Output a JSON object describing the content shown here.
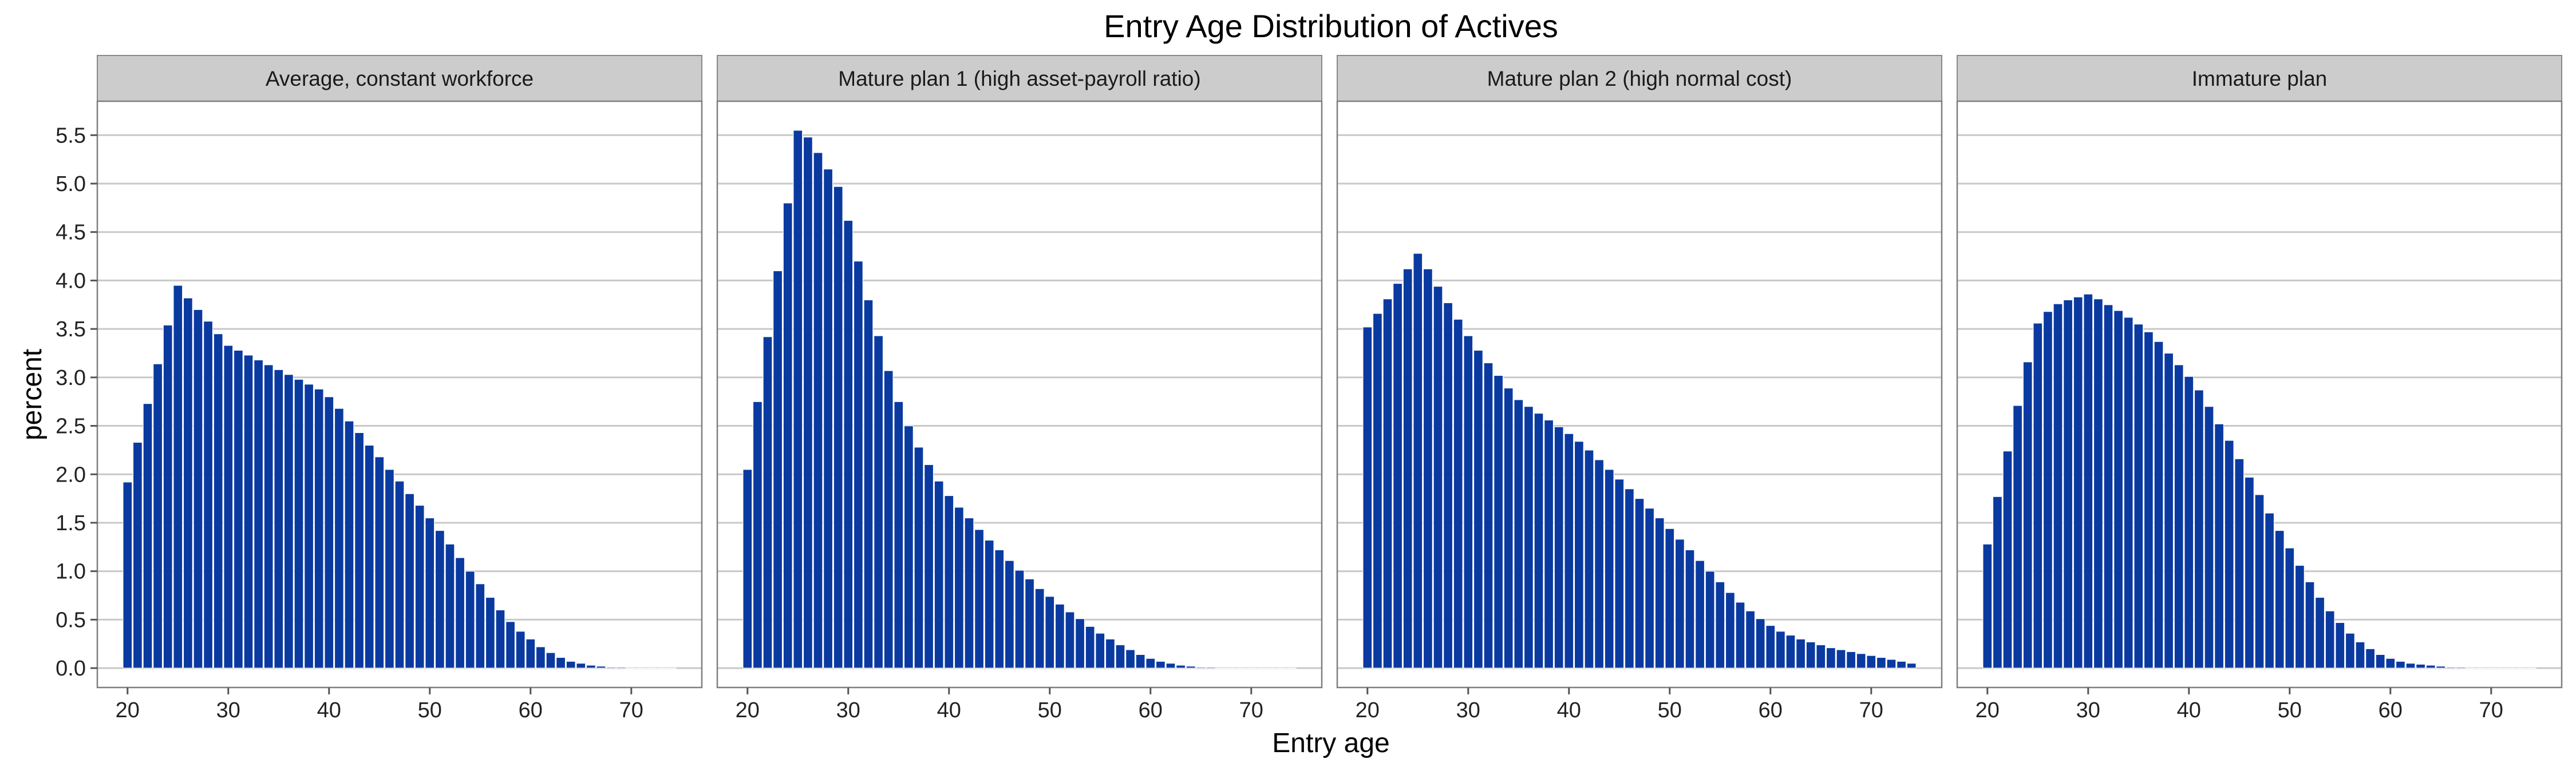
{
  "chart_data": {
    "type": "bar",
    "title": "Entry Age Distribution of Actives",
    "xlabel": "Entry age",
    "ylabel": "percent",
    "ylim": [
      -0.2,
      5.85
    ],
    "xlim": [
      17,
      77
    ],
    "x": [
      20,
      21,
      22,
      23,
      24,
      25,
      26,
      27,
      28,
      29,
      30,
      31,
      32,
      33,
      34,
      35,
      36,
      37,
      38,
      39,
      40,
      41,
      42,
      43,
      44,
      45,
      46,
      47,
      48,
      49,
      50,
      51,
      52,
      53,
      54,
      55,
      56,
      57,
      58,
      59,
      60,
      61,
      62,
      63,
      64,
      65,
      66,
      67,
      68,
      69,
      70,
      71,
      72,
      73,
      74
    ],
    "y_ticks": [
      "0.0",
      "0.5",
      "1.0",
      "1.5",
      "2.0",
      "2.5",
      "3.0",
      "3.5",
      "4.0",
      "4.5",
      "5.0",
      "5.5"
    ],
    "x_ticks": [
      "20",
      "30",
      "40",
      "50",
      "60",
      "70"
    ],
    "grid": true,
    "legend": "none",
    "bar_color": "#0a3aa0",
    "bar_border": "#ffffff",
    "panel_strip_color": "#cccccc",
    "panels": [
      {
        "name": "Average, constant workforce",
        "values": [
          1.92,
          2.33,
          2.73,
          3.14,
          3.54,
          3.95,
          3.82,
          3.7,
          3.58,
          3.45,
          3.33,
          3.28,
          3.23,
          3.18,
          3.13,
          3.08,
          3.03,
          2.98,
          2.93,
          2.88,
          2.8,
          2.68,
          2.55,
          2.43,
          2.3,
          2.18,
          2.05,
          1.93,
          1.8,
          1.68,
          1.55,
          1.42,
          1.28,
          1.14,
          1.0,
          0.87,
          0.73,
          0.6,
          0.48,
          0.38,
          0.3,
          0.22,
          0.16,
          0.11,
          0.07,
          0.05,
          0.03,
          0.02,
          0.01,
          0.01,
          0.0,
          0.0,
          0.0,
          0.0,
          0.0
        ]
      },
      {
        "name": "Mature plan 1 (high asset-payroll ratio)",
        "values": [
          2.05,
          2.75,
          3.42,
          4.1,
          4.8,
          5.55,
          5.48,
          5.32,
          5.15,
          4.97,
          4.62,
          4.2,
          3.8,
          3.43,
          3.07,
          2.75,
          2.5,
          2.28,
          2.1,
          1.93,
          1.78,
          1.66,
          1.55,
          1.43,
          1.32,
          1.22,
          1.11,
          1.01,
          0.92,
          0.82,
          0.74,
          0.66,
          0.58,
          0.51,
          0.43,
          0.36,
          0.3,
          0.24,
          0.19,
          0.14,
          0.1,
          0.07,
          0.05,
          0.03,
          0.02,
          0.01,
          0.01,
          0.0,
          0.0,
          0.0,
          0.0,
          0.0,
          0.0,
          0.0,
          0.0
        ]
      },
      {
        "name": "Mature plan 2 (high normal cost)",
        "values": [
          3.52,
          3.66,
          3.81,
          3.97,
          4.12,
          4.28,
          4.12,
          3.94,
          3.77,
          3.6,
          3.43,
          3.28,
          3.15,
          3.02,
          2.89,
          2.77,
          2.7,
          2.63,
          2.56,
          2.49,
          2.42,
          2.34,
          2.25,
          2.15,
          2.05,
          1.95,
          1.85,
          1.75,
          1.65,
          1.55,
          1.44,
          1.33,
          1.22,
          1.11,
          1.0,
          0.89,
          0.78,
          0.68,
          0.59,
          0.51,
          0.44,
          0.38,
          0.34,
          0.3,
          0.27,
          0.24,
          0.21,
          0.19,
          0.17,
          0.15,
          0.13,
          0.11,
          0.09,
          0.07,
          0.05
        ]
      },
      {
        "name": "Immature plan",
        "values": [
          1.28,
          1.77,
          2.24,
          2.71,
          3.16,
          3.56,
          3.68,
          3.76,
          3.8,
          3.83,
          3.86,
          3.81,
          3.75,
          3.69,
          3.62,
          3.55,
          3.47,
          3.37,
          3.25,
          3.13,
          3.01,
          2.87,
          2.7,
          2.52,
          2.35,
          2.16,
          1.97,
          1.79,
          1.6,
          1.42,
          1.24,
          1.06,
          0.89,
          0.73,
          0.59,
          0.47,
          0.36,
          0.27,
          0.2,
          0.14,
          0.1,
          0.07,
          0.05,
          0.04,
          0.03,
          0.02,
          0.01,
          0.01,
          0.0,
          0.0,
          0.0,
          0.0,
          0.0,
          0.0,
          0.0
        ]
      }
    ]
  }
}
